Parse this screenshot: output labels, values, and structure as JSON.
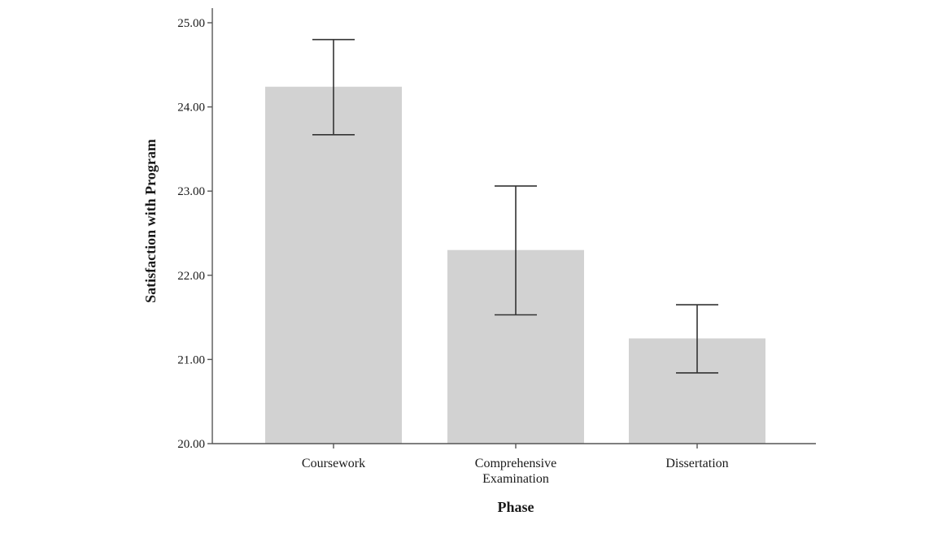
{
  "chart_data": {
    "type": "bar",
    "title": "",
    "xlabel": "Phase",
    "ylabel": "Satisfaction with Program",
    "ylim": [
      20,
      25
    ],
    "yticks": [
      "20.00",
      "21.00",
      "22.00",
      "23.00",
      "24.00",
      "25.00"
    ],
    "categories": [
      [
        "Coursework"
      ],
      [
        "Comprehensive",
        "Examination"
      ],
      [
        "Dissertation"
      ]
    ],
    "values": [
      24.24,
      22.3,
      21.25
    ],
    "error_bars": [
      {
        "low": 23.67,
        "high": 24.8
      },
      {
        "low": 21.53,
        "high": 23.06
      },
      {
        "low": 20.84,
        "high": 21.65
      }
    ],
    "grid": false,
    "legend": "none",
    "bar_color": "#d2d2d2",
    "axis_color": "#555555",
    "errorbar_color": "#333333"
  }
}
